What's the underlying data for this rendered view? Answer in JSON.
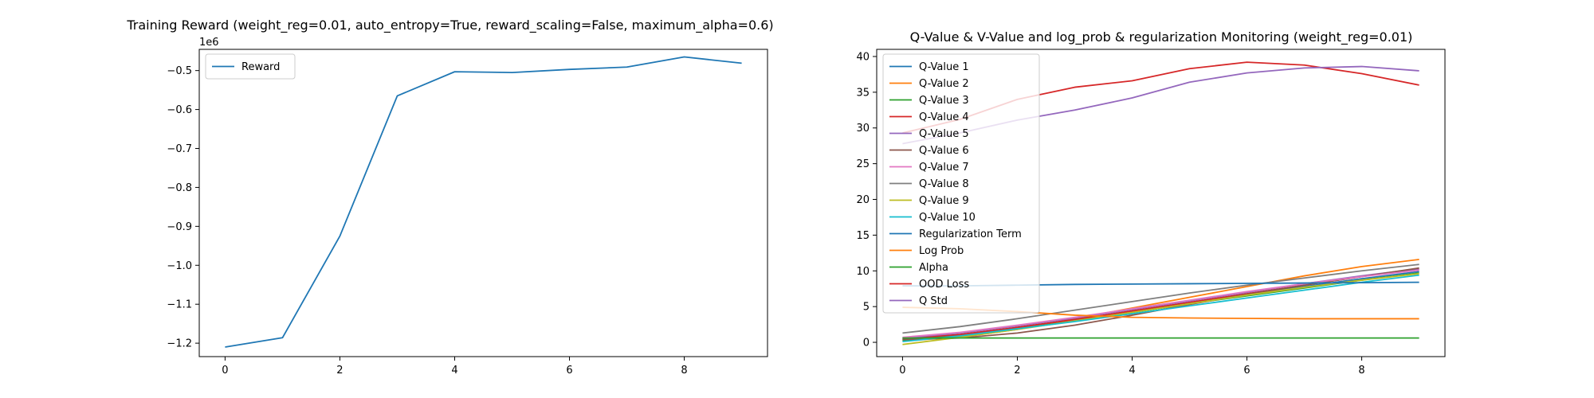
{
  "chart_data": [
    {
      "type": "line",
      "title": "Training Reward (weight_reg=0.01, auto_entropy=True, reward_scaling=False, maximum_alpha=0.6)",
      "xlabel": "",
      "ylabel": "",
      "offset_text": "1e6",
      "x": [
        0,
        1,
        2,
        3,
        4,
        5,
        6,
        7,
        8,
        9
      ],
      "xlim": [
        -0.45,
        9.45
      ],
      "ylim": [
        -1.2345,
        -0.4455
      ],
      "xticks": [
        0,
        2,
        4,
        6,
        8
      ],
      "yticks": [
        -1.2,
        -1.1,
        -1.0,
        -0.9,
        -0.8,
        -0.7,
        -0.6,
        -0.5
      ],
      "ytick_labels": [
        "−1.2",
        "−1.1",
        "−1.0",
        "−0.9",
        "−0.8",
        "−0.7",
        "−0.6",
        "−0.5"
      ],
      "grid": false,
      "legend_position": "upper left",
      "series": [
        {
          "name": "Reward",
          "color": "#1f77b4",
          "values": [
            -1.21,
            -1.186,
            -0.925,
            -0.565,
            -0.503,
            -0.505,
            -0.497,
            -0.491,
            -0.465,
            -0.481
          ]
        }
      ]
    },
    {
      "type": "line",
      "title": "Q-Value & V-Value and log_prob & regularization Monitoring (weight_reg=0.01)",
      "xlabel": "",
      "ylabel": "",
      "x": [
        0,
        1,
        2,
        3,
        4,
        5,
        6,
        7,
        8,
        9
      ],
      "xlim": [
        -0.45,
        9.45
      ],
      "ylim": [
        -2.0,
        41.0
      ],
      "xticks": [
        0,
        2,
        4,
        6,
        8
      ],
      "yticks": [
        0,
        5,
        10,
        15,
        20,
        25,
        30,
        35,
        40
      ],
      "ytick_labels": [
        "0",
        "5",
        "10",
        "15",
        "20",
        "25",
        "30",
        "35",
        "40"
      ],
      "grid": false,
      "legend_position": "upper left",
      "series": [
        {
          "name": "Q-Value 1",
          "color": "#1f77b4",
          "values": [
            0.4,
            1.0,
            2.0,
            3.0,
            4.2,
            5.4,
            6.6,
            7.8,
            8.9,
            9.9
          ]
        },
        {
          "name": "Q-Value 2",
          "color": "#ff7f0e",
          "values": [
            0.2,
            0.7,
            1.8,
            3.3,
            4.8,
            6.3,
            7.8,
            9.3,
            10.6,
            11.6
          ]
        },
        {
          "name": "Q-Value 3",
          "color": "#2ca02c",
          "values": [
            0.3,
            0.9,
            1.9,
            3.0,
            4.2,
            5.4,
            6.5,
            7.6,
            8.7,
            9.7
          ]
        },
        {
          "name": "Q-Value 4",
          "color": "#d62728",
          "values": [
            0.5,
            1.1,
            2.1,
            3.2,
            4.4,
            5.6,
            6.8,
            8.0,
            9.2,
            10.2
          ]
        },
        {
          "name": "Q-Value 5",
          "color": "#9467bd",
          "values": [
            0.6,
            1.3,
            2.3,
            3.4,
            4.6,
            5.8,
            7.0,
            8.2,
            9.3,
            10.3
          ]
        },
        {
          "name": "Q-Value 6",
          "color": "#8c564b",
          "values": [
            0.4,
            0.6,
            1.3,
            2.4,
            3.8,
            5.3,
            6.7,
            8.0,
            9.2,
            10.4
          ]
        },
        {
          "name": "Q-Value 7",
          "color": "#e377c2",
          "values": [
            0.7,
            1.4,
            2.4,
            3.5,
            4.7,
            5.9,
            7.1,
            8.2,
            9.2,
            10.1
          ]
        },
        {
          "name": "Q-Value 8",
          "color": "#7f7f7f",
          "values": [
            1.3,
            2.2,
            3.3,
            4.5,
            5.7,
            6.9,
            8.0,
            9.0,
            10.0,
            10.9
          ]
        },
        {
          "name": "Q-Value 9",
          "color": "#bcbd22",
          "values": [
            -0.3,
            0.7,
            1.8,
            3.0,
            4.2,
            5.4,
            6.6,
            7.7,
            8.7,
            9.6
          ]
        },
        {
          "name": "Q-Value 10",
          "color": "#17becf",
          "values": [
            0.1,
            0.9,
            1.9,
            2.9,
            4.0,
            5.1,
            6.2,
            7.3,
            8.4,
            9.4
          ]
        },
        {
          "name": "Regularization Term",
          "color": "#1f77b4",
          "values": [
            7.9,
            7.9,
            8.0,
            8.1,
            8.15,
            8.2,
            8.25,
            8.3,
            8.35,
            8.4
          ]
        },
        {
          "name": "Log Prob",
          "color": "#ff7f0e",
          "values": [
            4.9,
            4.7,
            4.3,
            3.8,
            3.5,
            3.4,
            3.35,
            3.3,
            3.3,
            3.3
          ]
        },
        {
          "name": "Alpha",
          "color": "#2ca02c",
          "values": [
            0.6,
            0.6,
            0.6,
            0.6,
            0.6,
            0.6,
            0.6,
            0.6,
            0.6,
            0.6
          ]
        },
        {
          "name": "OOD Loss",
          "color": "#d62728",
          "values": [
            29.3,
            31.2,
            34.0,
            35.7,
            36.6,
            38.3,
            39.2,
            38.8,
            37.6,
            36.0
          ]
        },
        {
          "name": "Q Std",
          "color": "#9467bd",
          "values": [
            27.8,
            29.3,
            31.1,
            32.5,
            34.2,
            36.4,
            37.7,
            38.4,
            38.6,
            38.0
          ]
        }
      ]
    }
  ]
}
